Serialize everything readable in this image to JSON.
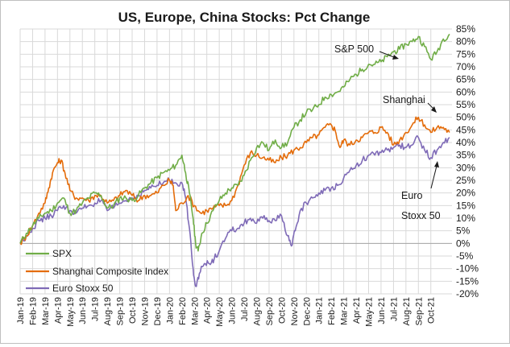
{
  "chart_data": {
    "type": "line",
    "title": "US, Europe, China Stocks: Pct Change",
    "ylim": [
      -20,
      85
    ],
    "yticks": [
      85,
      80,
      75,
      70,
      65,
      60,
      55,
      50,
      45,
      40,
      35,
      30,
      25,
      20,
      15,
      10,
      5,
      0,
      -5,
      -10,
      -15,
      -20
    ],
    "ytick_labels": [
      "85%",
      "80%",
      "75%",
      "70%",
      "65%",
      "60%",
      "55%",
      "50%",
      "45%",
      "40%",
      "35%",
      "30%",
      "25%",
      "20%",
      "15%",
      "10%",
      "5%",
      "0%",
      "-5%",
      "-10%",
      "-15%",
      "-20%"
    ],
    "x_labels": [
      "Jan-19",
      "Feb-19",
      "Mar-19",
      "Apr-19",
      "May-19",
      "Jun-19",
      "Jul-19",
      "Aug-19",
      "Sep-19",
      "Oct-19",
      "Nov-19",
      "Dec-19",
      "Jan-20",
      "Feb-20",
      "Mar-20",
      "Apr-20",
      "May-20",
      "Jun-20",
      "Jul-20",
      "Aug-20",
      "Sep-20",
      "Oct-20",
      "Nov-20",
      "Dec-20",
      "Jan-21",
      "Feb-21",
      "Mar-21",
      "Apr-21",
      "May-21",
      "Jun-21",
      "Jul-21",
      "Aug-21",
      "Sep-21",
      "Oct-21"
    ],
    "x_span_months": 34.7,
    "grid": true,
    "legend": "bottom-left",
    "series": [
      {
        "name": "SPX",
        "color": "#70ad47",
        "points": [
          [
            0,
            0
          ],
          [
            0.5,
            4
          ],
          [
            1,
            7
          ],
          [
            1.5,
            10
          ],
          [
            2,
            12
          ],
          [
            2.5,
            13
          ],
          [
            3,
            16
          ],
          [
            3.5,
            18
          ],
          [
            4,
            12
          ],
          [
            4.5,
            13
          ],
          [
            5,
            16
          ],
          [
            5.5,
            18
          ],
          [
            6,
            20
          ],
          [
            6.5,
            19
          ],
          [
            7,
            14
          ],
          [
            7.5,
            15
          ],
          [
            8,
            18
          ],
          [
            8.5,
            18
          ],
          [
            9,
            17
          ],
          [
            9.5,
            19
          ],
          [
            10,
            22
          ],
          [
            10.5,
            24
          ],
          [
            11,
            26
          ],
          [
            11.5,
            28
          ],
          [
            12,
            29
          ],
          [
            12.5,
            31
          ],
          [
            13,
            35
          ],
          [
            13.3,
            28
          ],
          [
            13.6,
            20
          ],
          [
            13.9,
            10
          ],
          [
            14.1,
            0
          ],
          [
            14.3,
            -3
          ],
          [
            14.6,
            4
          ],
          [
            15,
            8
          ],
          [
            15.5,
            13
          ],
          [
            16,
            17
          ],
          [
            16.5,
            20
          ],
          [
            17,
            22
          ],
          [
            17.5,
            23
          ],
          [
            18,
            27
          ],
          [
            18.5,
            33
          ],
          [
            19,
            38
          ],
          [
            19.5,
            40
          ],
          [
            20,
            37
          ],
          [
            20.5,
            41
          ],
          [
            21,
            38
          ],
          [
            21.5,
            40
          ],
          [
            22,
            46
          ],
          [
            22.5,
            49
          ],
          [
            23,
            52
          ],
          [
            23.5,
            53
          ],
          [
            24,
            55
          ],
          [
            24.5,
            58
          ],
          [
            25,
            59
          ],
          [
            25.5,
            60
          ],
          [
            26,
            62
          ],
          [
            26.5,
            65
          ],
          [
            27,
            67
          ],
          [
            27.5,
            69
          ],
          [
            28,
            71
          ],
          [
            28.5,
            71
          ],
          [
            29,
            72
          ],
          [
            29.5,
            74
          ],
          [
            30,
            76
          ],
          [
            30.5,
            77
          ],
          [
            31,
            79
          ],
          [
            31.5,
            80
          ],
          [
            32,
            82
          ],
          [
            32.5,
            78
          ],
          [
            33,
            73
          ],
          [
            33.5,
            76
          ],
          [
            34,
            81
          ],
          [
            34.5,
            83
          ]
        ]
      },
      {
        "name": "Shanghai Composite Index",
        "color": "#e46c0a",
        "points": [
          [
            0,
            0
          ],
          [
            0.5,
            3
          ],
          [
            1,
            7
          ],
          [
            1.5,
            12
          ],
          [
            2,
            16
          ],
          [
            2.3,
            22
          ],
          [
            2.6,
            28
          ],
          [
            3,
            32
          ],
          [
            3.3,
            33
          ],
          [
            3.6,
            28
          ],
          [
            4,
            21
          ],
          [
            4.5,
            18
          ],
          [
            5,
            18
          ],
          [
            5.5,
            17
          ],
          [
            6,
            19
          ],
          [
            6.5,
            19
          ],
          [
            7,
            16
          ],
          [
            7.5,
            17
          ],
          [
            8,
            19
          ],
          [
            8.5,
            21
          ],
          [
            9,
            19
          ],
          [
            9.5,
            17
          ],
          [
            10,
            19
          ],
          [
            10.5,
            19
          ],
          [
            11,
            20
          ],
          [
            11.5,
            23
          ],
          [
            12,
            25
          ],
          [
            12.3,
            23
          ],
          [
            12.5,
            13
          ],
          [
            13,
            16
          ],
          [
            13.5,
            19
          ],
          [
            14,
            15
          ],
          [
            14.5,
            12
          ],
          [
            15,
            13
          ],
          [
            15.5,
            14
          ],
          [
            16,
            15
          ],
          [
            16.5,
            15
          ],
          [
            17,
            17
          ],
          [
            17.5,
            23
          ],
          [
            18,
            31
          ],
          [
            18.5,
            36
          ],
          [
            19,
            35
          ],
          [
            19.5,
            34
          ],
          [
            20,
            33
          ],
          [
            20.5,
            32
          ],
          [
            21,
            34
          ],
          [
            21.5,
            35
          ],
          [
            22,
            37
          ],
          [
            22.5,
            38
          ],
          [
            23,
            40
          ],
          [
            23.5,
            42
          ],
          [
            24,
            43
          ],
          [
            24.5,
            46
          ],
          [
            25,
            47
          ],
          [
            25.3,
            45
          ],
          [
            25.7,
            38
          ],
          [
            26,
            41
          ],
          [
            26.5,
            39
          ],
          [
            27,
            41
          ],
          [
            27.5,
            42
          ],
          [
            28,
            44
          ],
          [
            28.5,
            44
          ],
          [
            29,
            46
          ],
          [
            29.5,
            44
          ],
          [
            30,
            39
          ],
          [
            30.5,
            41
          ],
          [
            31,
            44
          ],
          [
            31.5,
            47
          ],
          [
            32,
            50
          ],
          [
            32.5,
            47
          ],
          [
            33,
            44
          ],
          [
            33.5,
            46
          ],
          [
            34,
            46
          ],
          [
            34.5,
            44
          ]
        ]
      },
      {
        "name": "Euro Stoxx 50",
        "color": "#7f6bb7",
        "points": [
          [
            0,
            0
          ],
          [
            0.5,
            3
          ],
          [
            1,
            6
          ],
          [
            1.5,
            9
          ],
          [
            2,
            10
          ],
          [
            2.5,
            11
          ],
          [
            3,
            13
          ],
          [
            3.5,
            15
          ],
          [
            4,
            13
          ],
          [
            4.5,
            12
          ],
          [
            5,
            14
          ],
          [
            5.5,
            15
          ],
          [
            6,
            16
          ],
          [
            6.5,
            17
          ],
          [
            7,
            13
          ],
          [
            7.5,
            14
          ],
          [
            8,
            16
          ],
          [
            8.5,
            17
          ],
          [
            9,
            18
          ],
          [
            9.5,
            19
          ],
          [
            10,
            21
          ],
          [
            10.5,
            22
          ],
          [
            11,
            23
          ],
          [
            11.5,
            24
          ],
          [
            12,
            25
          ],
          [
            12.5,
            24
          ],
          [
            13,
            24
          ],
          [
            13.3,
            18
          ],
          [
            13.6,
            6
          ],
          [
            13.9,
            -10
          ],
          [
            14.1,
            -17
          ],
          [
            14.4,
            -12
          ],
          [
            14.8,
            -8
          ],
          [
            15.2,
            -8
          ],
          [
            15.6,
            -6
          ],
          [
            16,
            -3
          ],
          [
            16.5,
            2
          ],
          [
            17,
            5
          ],
          [
            17.5,
            6
          ],
          [
            18,
            8
          ],
          [
            18.5,
            10
          ],
          [
            19,
            8
          ],
          [
            19.5,
            10
          ],
          [
            20,
            9
          ],
          [
            20.5,
            9
          ],
          [
            21,
            11
          ],
          [
            21.5,
            3
          ],
          [
            21.8,
            -1
          ],
          [
            22.1,
            5
          ],
          [
            22.5,
            13
          ],
          [
            23,
            16
          ],
          [
            23.5,
            18
          ],
          [
            24,
            20
          ],
          [
            24.5,
            21
          ],
          [
            25,
            22
          ],
          [
            25.5,
            23
          ],
          [
            26,
            26
          ],
          [
            26.5,
            29
          ],
          [
            27,
            31
          ],
          [
            27.5,
            33
          ],
          [
            28,
            35
          ],
          [
            28.5,
            35
          ],
          [
            29,
            36
          ],
          [
            29.5,
            37
          ],
          [
            30,
            38
          ],
          [
            30.5,
            39
          ],
          [
            31,
            38
          ],
          [
            31.5,
            39
          ],
          [
            32,
            42
          ],
          [
            32.5,
            37
          ],
          [
            33,
            34
          ],
          [
            33.5,
            37
          ],
          [
            34,
            40
          ],
          [
            34.5,
            42
          ]
        ]
      }
    ],
    "annotations": [
      {
        "text": "S&P 500"
      },
      {
        "text": "Shanghai"
      },
      {
        "text": "Euro"
      },
      {
        "text": "Stoxx 50"
      }
    ]
  }
}
